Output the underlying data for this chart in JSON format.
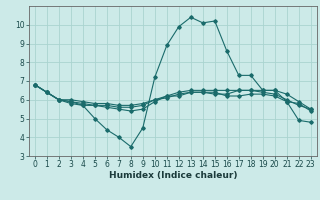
{
  "xlabel": "Humidex (Indice chaleur)",
  "background_color": "#cceae8",
  "grid_color": "#aad4d0",
  "line_color": "#1a6b6b",
  "xlim": [
    -0.5,
    23.5
  ],
  "ylim": [
    3,
    11
  ],
  "yticks": [
    3,
    4,
    5,
    6,
    7,
    8,
    9,
    10
  ],
  "xticks": [
    0,
    1,
    2,
    3,
    4,
    5,
    6,
    7,
    8,
    9,
    10,
    11,
    12,
    13,
    14,
    15,
    16,
    17,
    18,
    19,
    20,
    21,
    22,
    23
  ],
  "line1_x": [
    0,
    1,
    2,
    3,
    4,
    5,
    6,
    7,
    8,
    9,
    10,
    11,
    12,
    13,
    14,
    15,
    16,
    17,
    18,
    19,
    20,
    21,
    22,
    23
  ],
  "line1_y": [
    6.8,
    6.4,
    6.0,
    5.8,
    5.7,
    5.0,
    4.4,
    4.0,
    3.5,
    4.5,
    7.2,
    8.9,
    9.9,
    10.4,
    10.1,
    10.2,
    8.6,
    7.3,
    7.3,
    6.5,
    6.5,
    5.9,
    4.9,
    4.8
  ],
  "line2_x": [
    0,
    1,
    2,
    3,
    4,
    5,
    6,
    7,
    8,
    9,
    10,
    11,
    12,
    13,
    14,
    15,
    16,
    17,
    18,
    19,
    20,
    21,
    22,
    23
  ],
  "line2_y": [
    6.8,
    6.4,
    6.0,
    5.9,
    5.8,
    5.7,
    5.6,
    5.5,
    5.4,
    5.5,
    5.9,
    6.2,
    6.4,
    6.5,
    6.5,
    6.5,
    6.5,
    6.5,
    6.5,
    6.4,
    6.3,
    6.0,
    5.7,
    5.5
  ],
  "line3_x": [
    0,
    1,
    2,
    3,
    4,
    5,
    6,
    7,
    8,
    9,
    10,
    11,
    12,
    13,
    14,
    15,
    16,
    17,
    18,
    19,
    20,
    21,
    22,
    23
  ],
  "line3_y": [
    6.8,
    6.4,
    6.0,
    5.9,
    5.7,
    5.7,
    5.7,
    5.6,
    5.6,
    5.7,
    6.0,
    6.1,
    6.3,
    6.4,
    6.4,
    6.3,
    6.3,
    6.5,
    6.5,
    6.5,
    6.5,
    6.3,
    5.9,
    5.5
  ],
  "line4_x": [
    0,
    1,
    2,
    3,
    4,
    5,
    6,
    7,
    8,
    9,
    10,
    11,
    12,
    13,
    14,
    15,
    16,
    17,
    18,
    19,
    20,
    21,
    22,
    23
  ],
  "line4_y": [
    6.8,
    6.4,
    6.0,
    6.0,
    5.9,
    5.8,
    5.8,
    5.7,
    5.7,
    5.8,
    6.0,
    6.2,
    6.2,
    6.4,
    6.4,
    6.4,
    6.2,
    6.2,
    6.3,
    6.3,
    6.2,
    5.9,
    5.8,
    5.4
  ],
  "tick_fontsize": 5.5,
  "xlabel_fontsize": 6.5
}
